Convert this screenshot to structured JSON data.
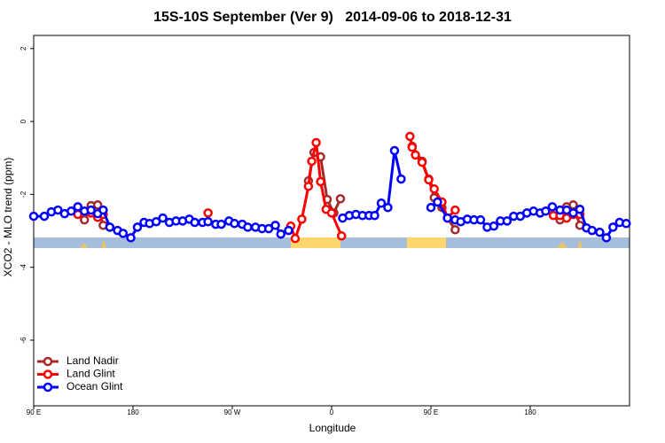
{
  "chart_data": {
    "type": "line",
    "title": "15S-10S September (Ver 9)   2014-09-06 to 2018-12-31",
    "x_label": "Longitude",
    "y_label": "XCO2 - MLO trend (ppm)",
    "xlim": [
      90,
      630
    ],
    "ylim": [
      -7.8,
      2.36
    ],
    "xticks": [
      {
        "value": 90,
        "label": "90 E"
      },
      {
        "value": 180,
        "label": "180"
      },
      {
        "value": 270,
        "label": "90 W"
      },
      {
        "value": 360,
        "label": "0"
      },
      {
        "value": 450,
        "label": "90 E"
      },
      {
        "value": 540,
        "label": "180"
      }
    ],
    "yticks": [
      -6,
      -4,
      -2,
      0,
      2
    ],
    "legend": "bottom-left",
    "series": [
      {
        "name": "Land Nadir",
        "color": "#a52a2a",
        "x": [
          136,
          142,
          148,
          153,
          null,
          339,
          344,
          350,
          356,
          362,
          368,
          null,
          433,
          442,
          448,
          453,
          460,
          465,
          472,
          null,
          567,
          573,
          579,
          585
        ],
        "values": [
          -2.7,
          -2.31,
          -2.29,
          -2.85,
          null,
          -1.63,
          -0.85,
          -0.97,
          -2.14,
          -2.51,
          -2.12,
          null,
          -0.68,
          -1.09,
          -1.58,
          -2.09,
          -2.36,
          -2.65,
          -2.97,
          null,
          -2.7,
          -2.34,
          -2.29,
          -2.85
        ]
      },
      {
        "name": "Land Glint",
        "color": "#ff0000",
        "x": [
          130,
          142,
          148,
          153,
          null,
          248,
          null,
          323,
          327,
          333,
          339,
          342,
          346,
          350,
          355,
          360,
          369,
          null,
          431,
          433,
          436,
          442,
          448,
          453,
          460,
          465,
          472,
          null,
          561,
          567,
          573,
          579,
          585
        ],
        "values": [
          -2.55,
          -2.51,
          -2.63,
          -2.55,
          null,
          -2.51,
          null,
          -2.87,
          -3.21,
          -2.68,
          -1.78,
          -1.09,
          -0.58,
          -1.65,
          -2.41,
          -2.51,
          -3.14,
          null,
          -0.41,
          -0.71,
          -0.92,
          -1.12,
          -1.6,
          -1.85,
          -2.21,
          -2.65,
          -2.43,
          null,
          -2.58,
          -2.58,
          -2.65,
          -2.55,
          -2.55
        ]
      },
      {
        "name": "Ocean Glint",
        "color": "#0000ff",
        "x": [
          90,
          99.6,
          106,
          112,
          118,
          124,
          130,
          136,
          142,
          148,
          153,
          159,
          166,
          171,
          178,
          184,
          190,
          195,
          201,
          207,
          213,
          219,
          225,
          231,
          236,
          243,
          248,
          255,
          260,
          267,
          272,
          279,
          284,
          291,
          297,
          303,
          309,
          314,
          321,
          null,
          370,
          376,
          382,
          388,
          394,
          399,
          405,
          411,
          417,
          423,
          null,
          450,
          456,
          465,
          472,
          477,
          483,
          489,
          495,
          501,
          507,
          513,
          519,
          525,
          531,
          537,
          543,
          549,
          554,
          560,
          567,
          573,
          579,
          585,
          591,
          596,
          603,
          609,
          615,
          621,
          627
        ],
        "values": [
          -2.6,
          -2.6,
          -2.48,
          -2.43,
          -2.53,
          -2.46,
          -2.34,
          -2.46,
          -2.43,
          -2.53,
          -2.43,
          -2.9,
          -2.99,
          -3.07,
          -3.19,
          -2.9,
          -2.77,
          -2.8,
          -2.75,
          -2.65,
          -2.77,
          -2.73,
          -2.73,
          -2.68,
          -2.77,
          -2.77,
          -2.75,
          -2.82,
          -2.82,
          -2.73,
          -2.8,
          -2.82,
          -2.9,
          -2.9,
          -2.94,
          -2.94,
          -2.85,
          -3.09,
          -2.99,
          null,
          -2.65,
          -2.58,
          -2.55,
          -2.58,
          -2.58,
          -2.58,
          -2.24,
          -2.36,
          -0.8,
          -1.58,
          null,
          -2.36,
          -2.21,
          -2.65,
          -2.7,
          -2.75,
          -2.68,
          -2.7,
          -2.7,
          -2.9,
          -2.87,
          -2.73,
          -2.73,
          -2.6,
          -2.6,
          -2.51,
          -2.46,
          -2.51,
          -2.46,
          -2.34,
          -2.43,
          -2.43,
          -2.51,
          -2.41,
          -2.92,
          -2.99,
          -3.04,
          -3.19,
          -2.9,
          -2.77,
          -2.8
        ]
      }
    ]
  }
}
